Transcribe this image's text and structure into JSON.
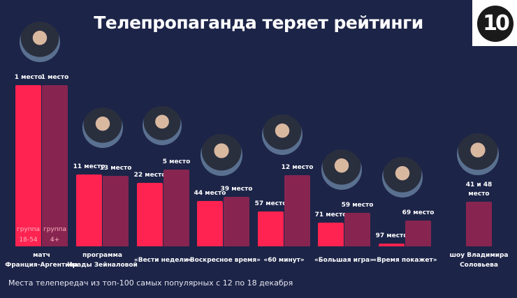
{
  "title": "Телепропаганда теряет рейтинги",
  "logo": "10",
  "footnote": "Места телепередач из топ-100 самых популярных с 12 по 18 декабря",
  "colors": {
    "background": "#1c2448",
    "group_18_54": "#fe2350",
    "group_4plus": "#872550"
  },
  "chart_data": {
    "type": "bar",
    "title": "Телепропаганда теряет рейтинги",
    "value_meaning": "rank in top-100 (lower = more popular, taller bar)",
    "legend": [
      "группа 18-54",
      "группа 4+"
    ],
    "legend_placement": "inside-first-bars",
    "categories": [
      "матч Франция-Аргентина",
      "программа Ирады Зейналовой",
      "«Вести недели»",
      "«Воскресное время»",
      "«60 минут»",
      "«Большая игра»",
      "«Время покажет»",
      "шоу Владимира Соловьева"
    ],
    "series": [
      {
        "name": "группа 18-54",
        "values": [
          1,
          11,
          22,
          44,
          57,
          71,
          97,
          null
        ],
        "labels": [
          "1 место",
          "11 место",
          "22 место",
          "44 место",
          "57 место",
          "71 место",
          "97 место",
          ""
        ]
      },
      {
        "name": "группа 4+",
        "values": [
          1,
          13,
          5,
          39,
          12,
          59,
          69,
          45
        ],
        "labels": [
          "1 место",
          "13 место",
          "5 место",
          "39 место",
          "12 место",
          "59 место",
          "69 место",
          "41 и 48 место"
        ]
      }
    ],
    "first_category_off_scale": true
  },
  "legend_labels": [
    [
      "группа",
      "18-54"
    ],
    [
      "группа",
      "4+"
    ]
  ],
  "captions": [
    [
      "матч",
      "Франция-Аргентина"
    ],
    [
      "программа",
      "Ирады Зейналовой"
    ],
    [
      "«Вести недели»"
    ],
    [
      "«Воскресное время»"
    ],
    [
      "«60 минут»"
    ],
    [
      "«Большая игра»"
    ],
    [
      "«Время покажет»"
    ],
    [
      "шоу Владимира",
      "Соловьева"
    ]
  ],
  "combined_label": [
    "41 и 48",
    "место"
  ]
}
